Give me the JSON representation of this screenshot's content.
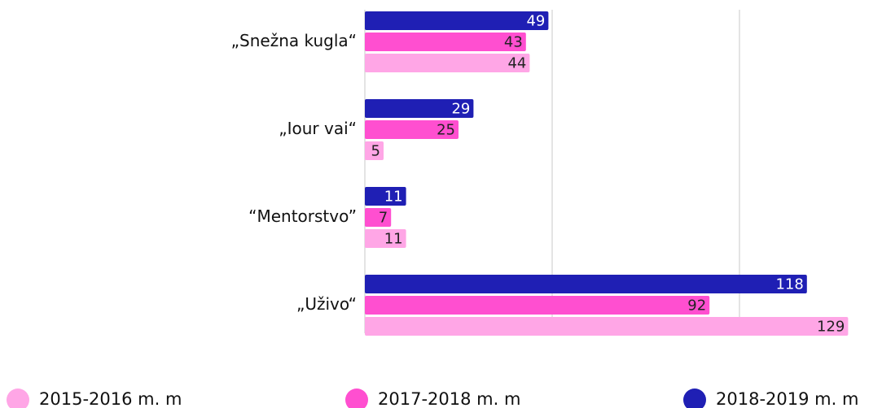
{
  "chart_data": {
    "type": "barh",
    "categories": [
      "„Snežna kugla“",
      "„Iour vai“",
      "“Mentorstvo”",
      "„Uživo“"
    ],
    "series": [
      {
        "name": "2015-2016 m. m",
        "color": "#ffa6e6",
        "values": [
          44,
          5,
          11,
          129
        ]
      },
      {
        "name": "2017-2018 m. m",
        "color": "#ff4fd0",
        "values": [
          43,
          25,
          7,
          92
        ]
      },
      {
        "name": "2018-2019 m. m",
        "color": "#1f1fb4",
        "values": [
          49,
          29,
          11,
          118
        ]
      }
    ],
    "xlim": [
      0,
      135
    ],
    "xticks": [
      0,
      50,
      100
    ],
    "grid": true,
    "legend": "bottom"
  }
}
